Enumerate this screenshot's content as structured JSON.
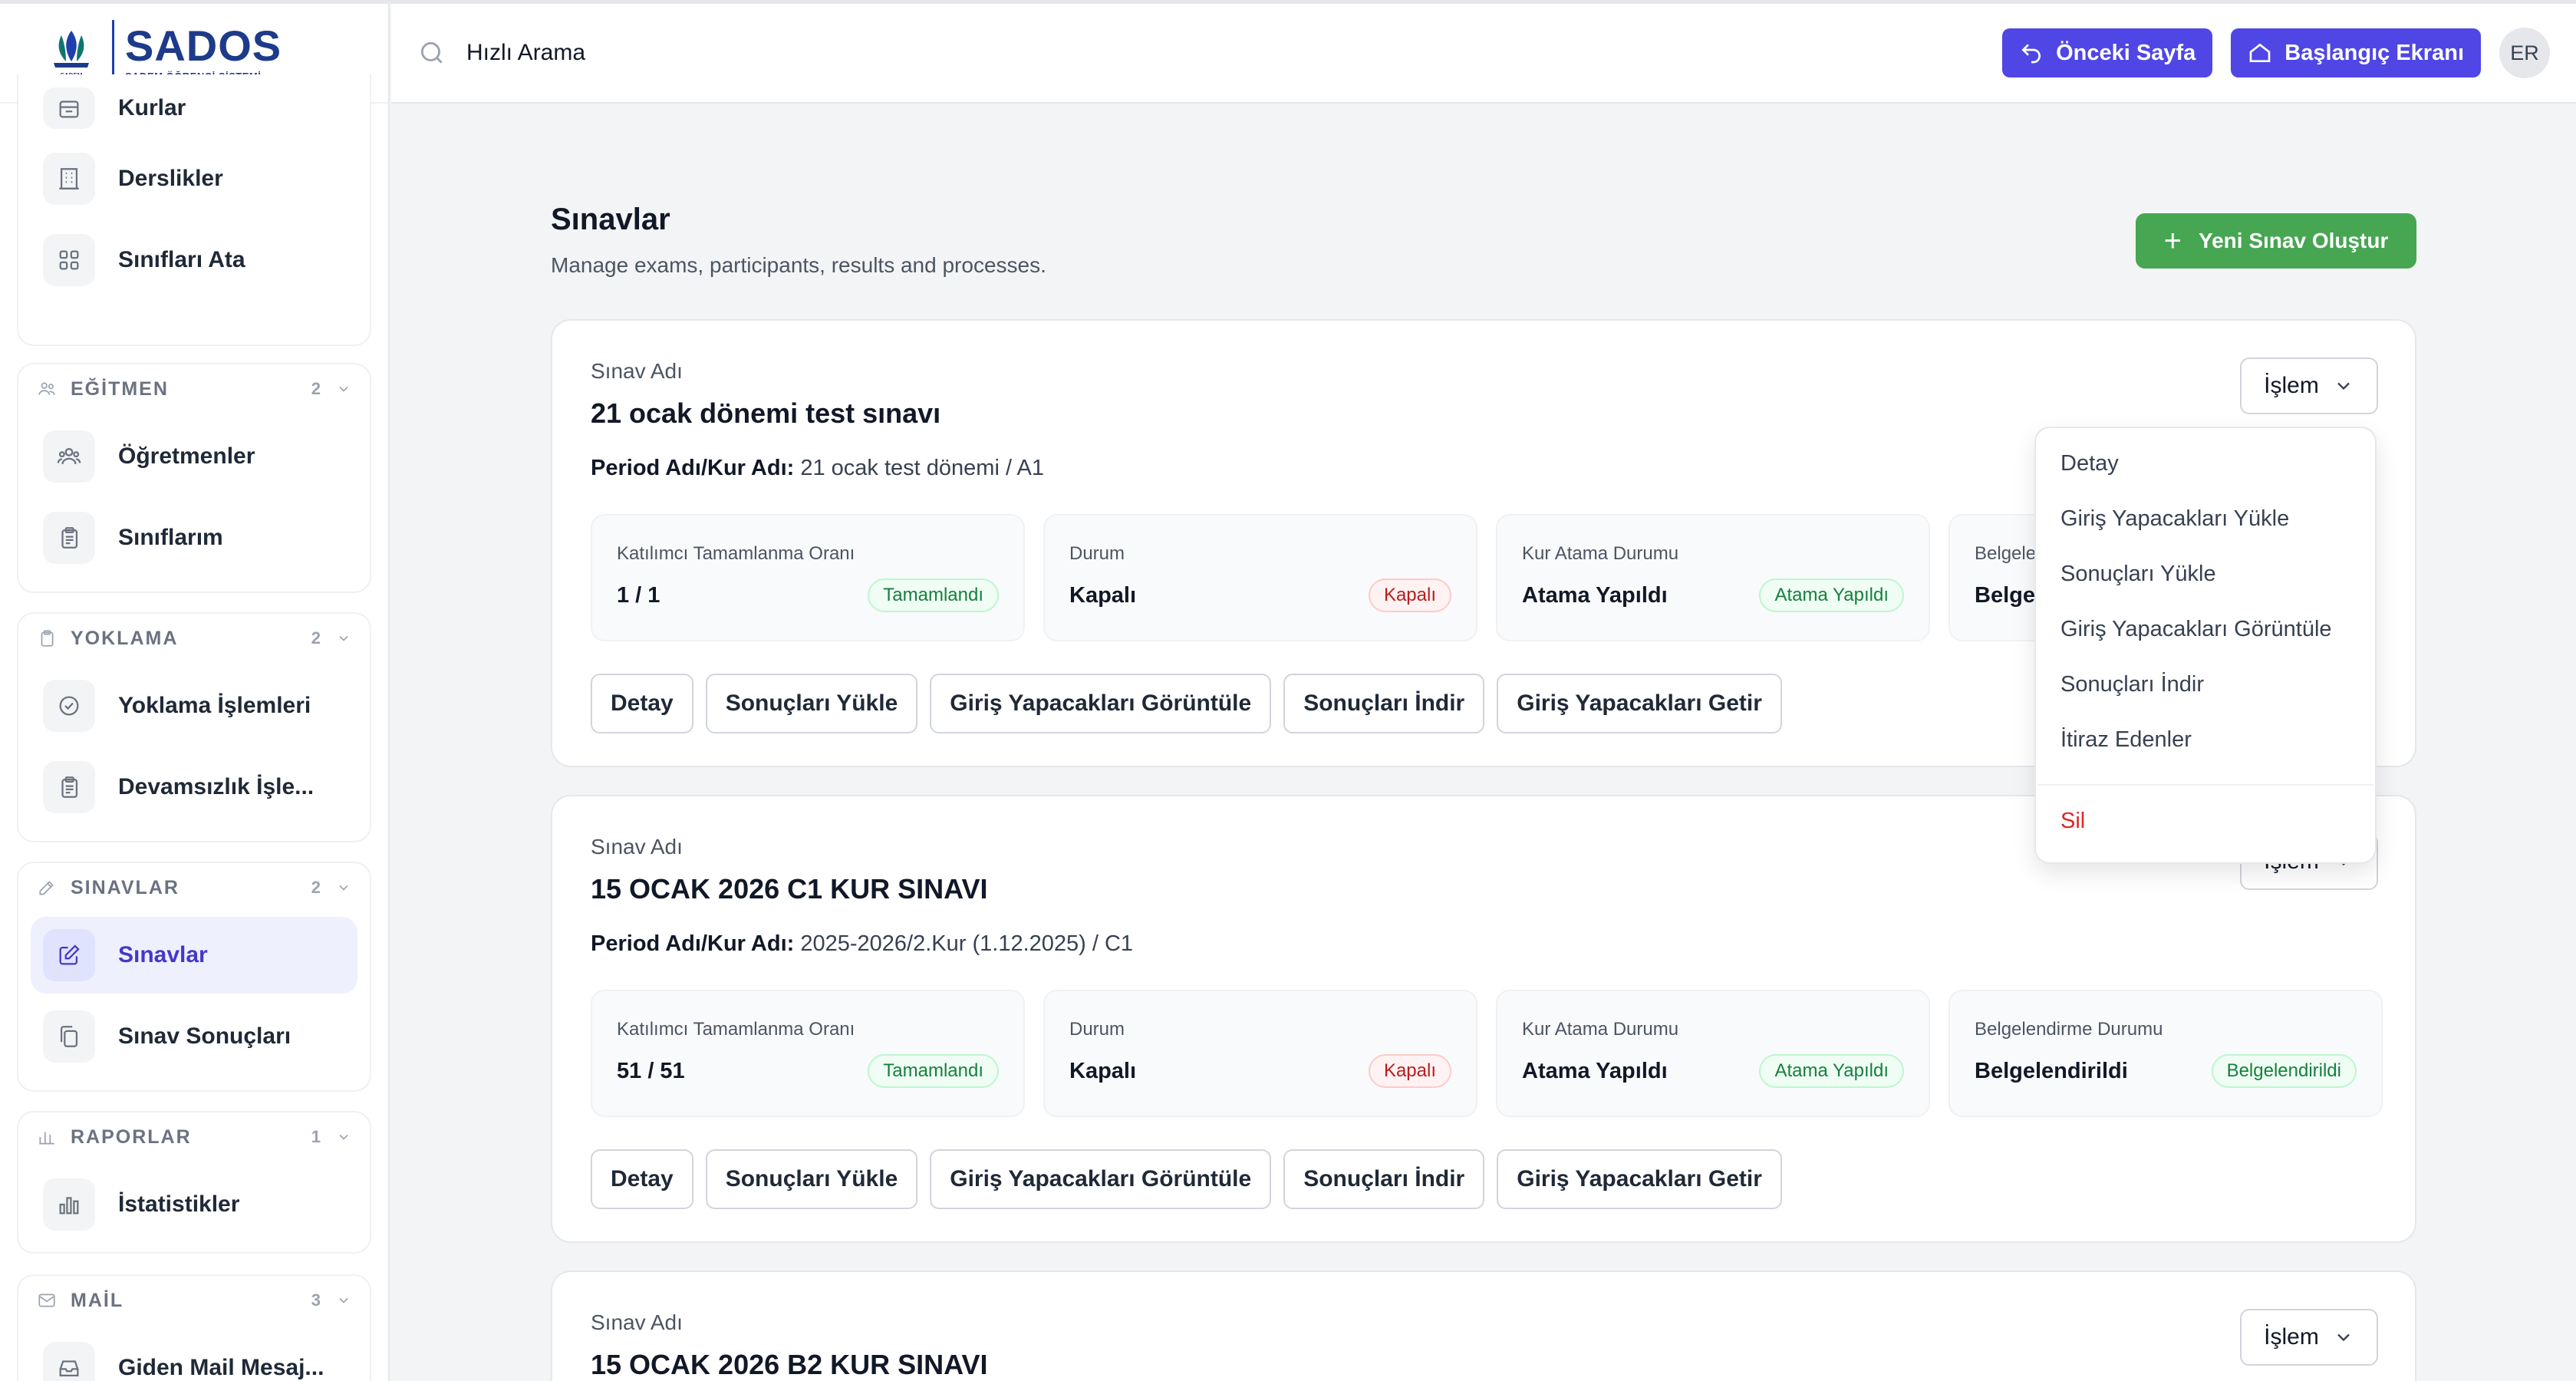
{
  "logo": {
    "brand": "SADOS",
    "subtitle": "SADEM ÖĞRENCİ SİSTEMİ",
    "emblem_text": "SADEM"
  },
  "sidebar": {
    "loose_items": [
      {
        "label": "Kurlar",
        "icon": "archive-icon"
      },
      {
        "label": "Derslikler",
        "icon": "building-icon"
      },
      {
        "label": "Sınıfları Ata",
        "icon": "grid-icon"
      }
    ],
    "groups": [
      {
        "title": "EĞİTMEN",
        "count": "2",
        "icon": "users-icon",
        "items": [
          {
            "label": "Öğretmenler",
            "icon": "users-icon"
          },
          {
            "label": "Sınıflarım",
            "icon": "clipboard-icon"
          }
        ]
      },
      {
        "title": "YOKLAMA",
        "count": "2",
        "icon": "clipboard-icon",
        "items": [
          {
            "label": "Yoklama İşlemleri",
            "icon": "check-circle-icon"
          },
          {
            "label": "Devamsızlık İşle...",
            "icon": "clipboard-icon"
          }
        ]
      },
      {
        "title": "SINAVLAR",
        "count": "2",
        "icon": "edit-icon",
        "items": [
          {
            "label": "Sınavlar",
            "icon": "edit-icon",
            "active": true
          },
          {
            "label": "Sınav Sonuçları",
            "icon": "copy-icon"
          }
        ]
      },
      {
        "title": "RAPORLAR",
        "count": "1",
        "icon": "bar-chart-icon",
        "items": [
          {
            "label": "İstatistikler",
            "icon": "bar-chart-icon"
          }
        ]
      },
      {
        "title": "MAİL",
        "count": "3",
        "icon": "mail-icon",
        "items": [
          {
            "label": "Giden Mail Mesaj...",
            "icon": "inbox-icon"
          }
        ]
      }
    ]
  },
  "topbar": {
    "search_placeholder": "Hızlı Arama",
    "back_label": "Önceki Sayfa",
    "home_label": "Başlangıç Ekranı",
    "avatar_initials": "ER"
  },
  "page": {
    "title": "Sınavlar",
    "subtitle": "Manage exams, participants, results and processes.",
    "new_button": "Yeni Sınav Oluştur"
  },
  "labels": {
    "exam_name": "Sınav Adı",
    "period": "Period Adı/Kur Adı:",
    "islem": "İşlem",
    "stat_completion": "Katılımcı Tamamlanma Oranı",
    "stat_status": "Durum",
    "stat_assign": "Kur Atama Durumu",
    "stat_cert": "Belgelendirme Durumu"
  },
  "exams": [
    {
      "name": "21 ocak dönemi test sınavı",
      "period": "21 ocak test dönemi / A1",
      "completion": "1 / 1",
      "completion_badge": "Tamamlandı",
      "status": "Kapalı",
      "status_badge": "Kapalı",
      "assign": "Atama Yapıldı",
      "assign_badge": "Atama Yapıldı",
      "cert_title_partial": "Belgele",
      "cert_value_partial": "Belgel"
    },
    {
      "name": "15 OCAK 2026 C1 KUR SINAVI",
      "period": "2025-2026/2.Kur (1.12.2025) / C1",
      "completion": "51 / 51",
      "completion_badge": "Tamamlandı",
      "status": "Kapalı",
      "status_badge": "Kapalı",
      "assign": "Atama Yapıldı",
      "assign_badge": "Atama Yapıldı",
      "cert": "Belgelendirildi",
      "cert_badge": "Belgelendirildi",
      "islem_partial": "İşlem"
    },
    {
      "name": "15 OCAK 2026 B2 KUR SINAVI"
    }
  ],
  "card_actions": [
    "Detay",
    "Sonuçları Yükle",
    "Giriş Yapacakları Görüntüle",
    "Sonuçları İndir",
    "Giriş Yapacakları Getir"
  ],
  "dropdown": {
    "items": [
      "Detay",
      "Giriş Yapacakları Yükle",
      "Sonuçları Yükle",
      "Giriş Yapacakları Görüntüle",
      "Sonuçları İndir",
      "İtiraz Edenler"
    ],
    "danger_item": "Sil"
  },
  "colors": {
    "primary": "#4f46e5",
    "success": "#47a651",
    "danger": "#dc2626",
    "active_bg": "#eef0fe"
  }
}
